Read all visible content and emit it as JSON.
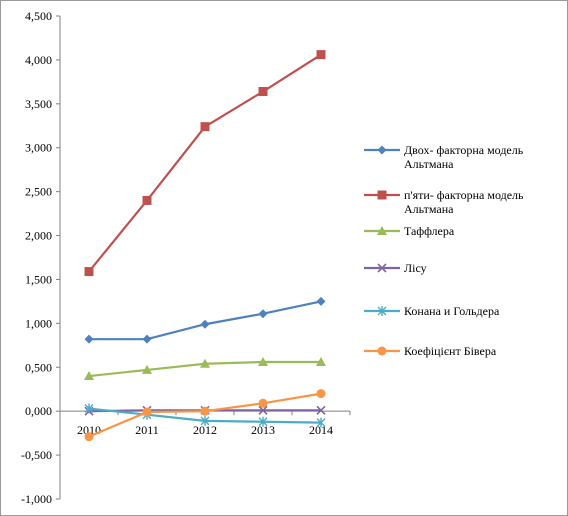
{
  "chart_data": {
    "type": "line",
    "title": "",
    "xlabel": "",
    "ylabel": "",
    "x": [
      "2010",
      "2011",
      "2012",
      "2013",
      "2014"
    ],
    "ylim": [
      -1.0,
      4.5
    ],
    "ytick_step": 0.5,
    "y_ticks": [
      "-1,000",
      "-0,500",
      "0,000",
      "0,500",
      "1,000",
      "1,500",
      "2,000",
      "2,500",
      "3,000",
      "3,500",
      "4,000",
      "4,500"
    ],
    "grid": false,
    "legend_position": "right",
    "series": [
      {
        "name": "Двох- факторна модель Альтмана",
        "name_lines": [
          "Двох- факторна модель",
          "Альтмана"
        ],
        "color": "#4f81bd",
        "marker": "diamond",
        "values": [
          0.82,
          0.82,
          0.99,
          1.11,
          1.25
        ]
      },
      {
        "name": "п'яти- факторна модель Альтмана",
        "name_lines": [
          "п'яти- факторна модель",
          "Альтмана"
        ],
        "color": "#c0504d",
        "marker": "square",
        "values": [
          1.59,
          2.4,
          3.24,
          3.64,
          4.06
        ]
      },
      {
        "name": "Таффлера",
        "name_lines": [
          "Таффлера"
        ],
        "color": "#9bbb59",
        "marker": "triangle",
        "values": [
          0.4,
          0.47,
          0.54,
          0.56,
          0.56
        ]
      },
      {
        "name": "Лісу",
        "name_lines": [
          "Лісу"
        ],
        "color": "#8064a2",
        "marker": "x",
        "values": [
          0.0,
          0.01,
          0.01,
          0.01,
          0.01
        ]
      },
      {
        "name": "Конана и Гольдера",
        "name_lines": [
          "Конана и Гольдера"
        ],
        "color": "#4bacc6",
        "marker": "star",
        "values": [
          0.03,
          -0.04,
          -0.11,
          -0.12,
          -0.13
        ]
      },
      {
        "name": "Коефіцієнт Бівера",
        "name_lines": [
          "Коефіцієнт Бівера"
        ],
        "color": "#f79646",
        "marker": "circle",
        "values": [
          -0.29,
          -0.01,
          0.0,
          0.09,
          0.2
        ]
      }
    ]
  }
}
